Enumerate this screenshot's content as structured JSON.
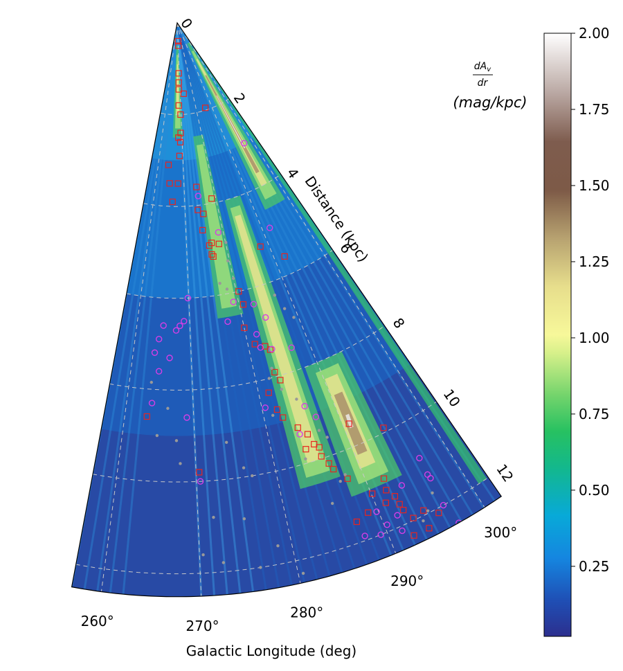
{
  "chart_data": {
    "type": "heatmap",
    "projection": "polar-wedge",
    "title": "",
    "xlabel": "Galactic Longitude (deg)",
    "rlabel": "Distance (kpc)",
    "theta_range_deg": [
      257,
      302
    ],
    "r_range_kpc": [
      0,
      12.5
    ],
    "theta_ticks": [
      260,
      270,
      280,
      290,
      300
    ],
    "theta_tick_labels": [
      "260°",
      "270°",
      "280°",
      "290°",
      "300°"
    ],
    "r_ticks": [
      0,
      2,
      4,
      6,
      8,
      10,
      12
    ],
    "r_tick_labels": [
      "0",
      "2",
      "4",
      "6",
      "8",
      "10",
      "12"
    ],
    "grid": true,
    "colormap": "gist_earth_r-like",
    "colorbar": {
      "label_numerator": "dA",
      "label_numerator_sub": "v",
      "label_denominator": "dr",
      "label_units": "(mag/kpc)",
      "range": [
        0.02,
        2.0
      ],
      "ticks": [
        0.25,
        0.5,
        0.75,
        1.0,
        1.25,
        1.5,
        1.75,
        2.0
      ],
      "tick_labels": [
        "0.25",
        "0.50",
        "0.75",
        "1.00",
        "1.25",
        "1.50",
        "1.75",
        "2.00"
      ]
    },
    "high_extinction_features": [
      {
        "l": 296,
        "r_start": 0.5,
        "r_end": 4.5,
        "peak": 2.0
      },
      {
        "l": 291,
        "r_start": 8.0,
        "r_end": 11.0,
        "peak": 1.9
      },
      {
        "l": 285,
        "r_start": 4.0,
        "r_end": 10.5,
        "peak": 0.9
      },
      {
        "l": 278,
        "r_start": 2.5,
        "r_end": 6.5,
        "peak": 0.8
      },
      {
        "l": 268,
        "r_start": 0.5,
        "r_end": 2.5,
        "peak": 0.9
      }
    ],
    "series": [
      {
        "name": "red squares",
        "marker": "square",
        "color": "#e8251f",
        "points": [
          [
            270.5,
            0.4
          ],
          [
            270.6,
            0.5
          ],
          [
            269.3,
            1.1
          ],
          [
            269.1,
            1.3
          ],
          [
            269.0,
            1.45
          ],
          [
            268.7,
            1.8
          ],
          [
            269.7,
            2.0
          ],
          [
            269.4,
            2.4
          ],
          [
            268.2,
            2.5
          ],
          [
            269.1,
            2.6
          ],
          [
            268.6,
            2.9
          ],
          [
            272.8,
            1.55
          ],
          [
            285.9,
            1.95
          ],
          [
            274.3,
            3.6
          ],
          [
            273.9,
            4.1
          ],
          [
            274.6,
            4.55
          ],
          [
            275.4,
            4.2
          ],
          [
            275.8,
            4.9
          ],
          [
            276.5,
            4.85
          ],
          [
            276.1,
            5.1
          ],
          [
            276.4,
            5.15
          ],
          [
            278.7,
            3.9
          ],
          [
            278.3,
            4.9
          ],
          [
            280.5,
            6.0
          ],
          [
            280.8,
            6.3
          ],
          [
            280.0,
            6.8
          ],
          [
            281.2,
            7.2
          ],
          [
            288.0,
            5.2
          ],
          [
            292.3,
            5.6
          ],
          [
            282.8,
            7.3
          ],
          [
            283.5,
            7.4
          ],
          [
            283.7,
            8.1
          ],
          [
            283.2,
            7.9
          ],
          [
            281.5,
            8.3
          ],
          [
            282.1,
            8.7
          ],
          [
            282.6,
            8.9
          ],
          [
            284.2,
            9.2
          ],
          [
            284.4,
            9.7
          ],
          [
            285.2,
            9.4
          ],
          [
            285.6,
            9.65
          ],
          [
            286.1,
            9.75
          ],
          [
            286.0,
            9.95
          ],
          [
            286.6,
            10.15
          ],
          [
            286.9,
            10.3
          ],
          [
            290.8,
            9.5
          ],
          [
            288.1,
            10.6
          ],
          [
            290.1,
            11.1
          ],
          [
            287.4,
            11.55
          ],
          [
            288.9,
            11.45
          ],
          [
            291.1,
            11.4
          ],
          [
            294.6,
            9.9
          ],
          [
            292.0,
            10.9
          ],
          [
            291.7,
            11.15
          ],
          [
            292.3,
            11.35
          ],
          [
            292.4,
            11.55
          ],
          [
            292.5,
            11.7
          ],
          [
            293.1,
            11.95
          ],
          [
            294.4,
            11.9
          ],
          [
            295.7,
            12.1
          ],
          [
            292.4,
            12.3
          ],
          [
            294.1,
            12.3
          ],
          [
            263.2,
            8.6
          ],
          [
            270.4,
            9.8
          ],
          [
            264.9,
            3.5
          ],
          [
            266.1,
            3.9
          ],
          [
            264.1,
            3.1
          ],
          [
            267.9,
            3.5
          ]
        ]
      },
      {
        "name": "magenta circles",
        "marker": "circle",
        "color": "#d63ee6",
        "points": [
          [
            296.7,
            3.0
          ],
          [
            291.9,
            4.9
          ],
          [
            278.7,
            4.65
          ],
          [
            274.5,
            3.8
          ],
          [
            282.8,
            6.35
          ],
          [
            284.3,
            6.7
          ],
          [
            279.0,
            6.2
          ],
          [
            277.2,
            6.6
          ],
          [
            268.9,
            6.5
          ],
          [
            269.8,
            6.0
          ],
          [
            268.1,
            6.6
          ],
          [
            265.0,
            6.6
          ],
          [
            263.7,
            7.2
          ],
          [
            264.3,
            6.9
          ],
          [
            266.3,
            7.3
          ],
          [
            264.6,
            7.6
          ],
          [
            267.4,
            6.7
          ],
          [
            280.5,
            8.6
          ],
          [
            286.0,
            8.8
          ],
          [
            287.0,
            9.1
          ],
          [
            284.2,
            9.35
          ],
          [
            283.8,
            7.4
          ],
          [
            281.9,
            7.0
          ],
          [
            282.0,
            7.3
          ],
          [
            287.0,
            7.5
          ],
          [
            263.8,
            8.3
          ],
          [
            269.0,
            8.6
          ],
          [
            270.5,
            10.0
          ],
          [
            287.7,
            11.9
          ],
          [
            289.3,
            12.0
          ],
          [
            290.3,
            11.85
          ],
          [
            291.5,
            12.1
          ],
          [
            296.7,
            10.85
          ],
          [
            296.6,
            11.25
          ],
          [
            296.7,
            11.35
          ],
          [
            296.5,
            12.0
          ],
          [
            297.0,
            12.5
          ],
          [
            289.8,
            11.5
          ],
          [
            291.7,
            11.75
          ],
          [
            293.5,
            11.2
          ]
        ]
      },
      {
        "name": "grey dots",
        "marker": "dot",
        "color": "#999999",
        "points": [
          [
            276.3,
            12.0
          ],
          [
            278.5,
            11.6
          ],
          [
            280.5,
            12.3
          ],
          [
            275.3,
            10.9
          ],
          [
            271.8,
            10.8
          ],
          [
            270.4,
            11.6
          ],
          [
            272.5,
            11.8
          ],
          [
            264.8,
            9.0
          ],
          [
            263.5,
            7.85
          ],
          [
            266.2,
            8.4
          ],
          [
            267.5,
            9.1
          ],
          [
            268.0,
            9.6
          ],
          [
            274.3,
            9.2
          ],
          [
            276.1,
            9.8
          ],
          [
            277.0,
            10.0
          ],
          [
            281.3,
            8.8
          ],
          [
            282.1,
            8.0
          ],
          [
            287.2,
            10.6
          ],
          [
            288.0,
            10.5
          ],
          [
            285.5,
            11.0
          ],
          [
            293.9,
            12.1
          ],
          [
            294.8,
            11.95
          ],
          [
            296.1,
            11.65
          ],
          [
            287.5,
            9.6
          ],
          [
            280.0,
            5.7
          ],
          [
            279.6,
            5.3
          ],
          [
            282.9,
            7.8
          ],
          [
            283.5,
            8.3
          ],
          [
            285.2,
            8.6
          ],
          [
            286.8,
            9.4
          ],
          [
            284.0,
            9.9
          ],
          [
            276.9,
            5.75
          ],
          [
            278.2,
            5.9
          ],
          [
            280.1,
            4.9
          ],
          [
            287.3,
            6.3
          ],
          [
            288.2,
            6.65
          ],
          [
            289.2,
            6.9
          ]
        ]
      }
    ]
  }
}
